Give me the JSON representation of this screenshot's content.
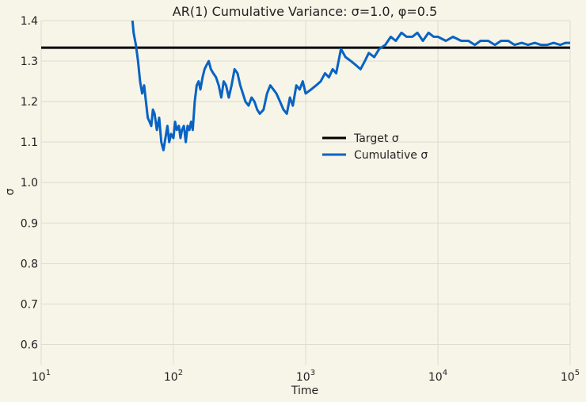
{
  "chart_data": {
    "type": "line",
    "title": "AR(1) Cumulative Variance: σ=1.0, φ=0.5",
    "xlabel": "Time",
    "ylabel": "σ",
    "xscale": "log",
    "xlim": [
      10,
      100000
    ],
    "ylim": [
      0.55,
      1.4
    ],
    "grid": true,
    "legend_position": "center-right",
    "x_ticks": [
      {
        "value": 10,
        "base": "10",
        "exp": "1"
      },
      {
        "value": 100,
        "base": "10",
        "exp": "2"
      },
      {
        "value": 1000,
        "base": "10",
        "exp": "3"
      },
      {
        "value": 10000,
        "base": "10",
        "exp": "4"
      },
      {
        "value": 100000,
        "base": "10",
        "exp": "5"
      }
    ],
    "y_ticks": [
      "0.6",
      "0.7",
      "0.8",
      "0.9",
      "1.0",
      "1.1",
      "1.2",
      "1.3",
      "1.4"
    ],
    "series": [
      {
        "name": "Target σ",
        "color": "#000000",
        "x": [
          10,
          100000
        ],
        "y": [
          1.3333,
          1.3333
        ]
      },
      {
        "name": "Cumulative σ",
        "color": "#0863c4",
        "x": [
          49,
          50,
          52,
          54,
          56,
          58,
          60,
          62,
          64,
          66,
          68,
          70,
          72,
          75,
          78,
          81,
          84,
          87,
          90,
          93,
          96,
          100,
          103,
          106,
          110,
          113,
          116,
          120,
          124,
          128,
          132,
          136,
          140,
          145,
          150,
          155,
          160,
          166,
          172,
          178,
          185,
          192,
          200,
          210,
          220,
          230,
          240,
          250,
          262,
          275,
          290,
          305,
          320,
          335,
          350,
          370,
          390,
          410,
          430,
          450,
          480,
          510,
          540,
          570,
          600,
          640,
          680,
          720,
          760,
          800,
          850,
          900,
          950,
          1000,
          1100,
          1200,
          1300,
          1400,
          1500,
          1600,
          1700,
          1850,
          2000,
          2200,
          2400,
          2600,
          2800,
          3000,
          3300,
          3600,
          4000,
          4400,
          4800,
          5300,
          5800,
          6400,
          7000,
          7700,
          8500,
          9300,
          10000,
          11500,
          13000,
          15000,
          17000,
          19000,
          21000,
          24000,
          27000,
          30000,
          34000,
          38000,
          43000,
          48000,
          54000,
          60000,
          67000,
          75000,
          84000,
          92000,
          100000
        ],
        "y": [
          1.4,
          1.37,
          1.34,
          1.3,
          1.25,
          1.22,
          1.24,
          1.2,
          1.16,
          1.15,
          1.14,
          1.18,
          1.17,
          1.13,
          1.16,
          1.1,
          1.08,
          1.11,
          1.14,
          1.1,
          1.12,
          1.11,
          1.15,
          1.13,
          1.14,
          1.11,
          1.13,
          1.14,
          1.1,
          1.14,
          1.13,
          1.15,
          1.13,
          1.2,
          1.24,
          1.25,
          1.23,
          1.26,
          1.28,
          1.29,
          1.3,
          1.28,
          1.27,
          1.26,
          1.24,
          1.21,
          1.25,
          1.24,
          1.21,
          1.24,
          1.28,
          1.27,
          1.24,
          1.22,
          1.2,
          1.19,
          1.21,
          1.2,
          1.18,
          1.17,
          1.18,
          1.22,
          1.24,
          1.23,
          1.22,
          1.2,
          1.18,
          1.17,
          1.21,
          1.19,
          1.24,
          1.23,
          1.25,
          1.22,
          1.23,
          1.24,
          1.25,
          1.27,
          1.26,
          1.28,
          1.27,
          1.33,
          1.31,
          1.3,
          1.29,
          1.28,
          1.3,
          1.32,
          1.31,
          1.33,
          1.34,
          1.36,
          1.35,
          1.37,
          1.36,
          1.36,
          1.37,
          1.35,
          1.37,
          1.36,
          1.36,
          1.35,
          1.36,
          1.35,
          1.35,
          1.34,
          1.35,
          1.35,
          1.34,
          1.35,
          1.35,
          1.34,
          1.345,
          1.34,
          1.345,
          1.34,
          1.34,
          1.345,
          1.34,
          1.345,
          1.345
        ]
      }
    ]
  }
}
